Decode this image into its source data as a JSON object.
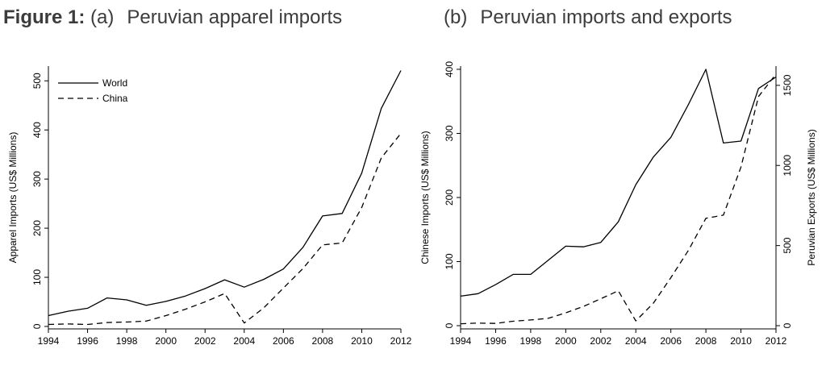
{
  "figure": {
    "label": "Figure 1:",
    "panel_a_tag": "(a)",
    "panel_a_title": "Peruvian apparel imports",
    "panel_b_tag": "(b)",
    "panel_b_title": "Peruvian imports and exports"
  },
  "chart_data": [
    {
      "type": "line",
      "title": "Peruvian apparel imports",
      "xlabel": "",
      "ylabel": "Apparel Imports (US$ Millions)",
      "x": [
        1994,
        1995,
        1996,
        1997,
        1998,
        1999,
        2000,
        2001,
        2002,
        2003,
        2004,
        2005,
        2006,
        2007,
        2008,
        2009,
        2010,
        2011,
        2012
      ],
      "xlim": [
        1994,
        2012
      ],
      "ylim": [
        -5,
        530
      ],
      "xticks": [
        "1994",
        "1996",
        "1998",
        "2000",
        "2002",
        "2004",
        "2006",
        "2008",
        "2010",
        "2012"
      ],
      "yticks": [
        "0",
        "100",
        "200",
        "300",
        "400",
        "500"
      ],
      "legend": "top-left",
      "series": [
        {
          "name": "World",
          "style": "solid",
          "values": [
            22,
            31,
            37,
            58,
            54,
            43,
            51,
            62,
            77,
            95,
            80,
            96,
            117,
            161,
            225,
            230,
            312,
            444,
            521
          ]
        },
        {
          "name": "China",
          "style": "dashed",
          "values": [
            4,
            5,
            4,
            8,
            9,
            11,
            22,
            35,
            50,
            67,
            7,
            38,
            78,
            118,
            166,
            170,
            242,
            343,
            393
          ]
        }
      ]
    },
    {
      "type": "line",
      "title": "Peruvian imports and exports",
      "xlabel": "",
      "ylabel": "Chinese Imports (US$ Millions)",
      "ylabel_right": "Peruvian Exports (US$ Millions)",
      "x": [
        1994,
        1995,
        1996,
        1997,
        1998,
        1999,
        2000,
        2001,
        2002,
        2003,
        2004,
        2005,
        2006,
        2007,
        2008,
        2009,
        2010,
        2011,
        2012
      ],
      "xlim": [
        1994,
        2012
      ],
      "ylim": [
        -5,
        405
      ],
      "ylim_right": [
        -20,
        1620
      ],
      "xticks": [
        "1994",
        "1996",
        "1998",
        "2000",
        "2002",
        "2004",
        "2006",
        "2008",
        "2010",
        "2012"
      ],
      "yticks": [
        "0",
        "100",
        "200",
        "300",
        "400"
      ],
      "yticks_right": [
        "0",
        "500",
        "1000",
        "1500"
      ],
      "series": [
        {
          "name": "Chinese Imports",
          "style": "solid",
          "axis": "left",
          "values": [
            46,
            50,
            64,
            80,
            80,
            102,
            124,
            123,
            130,
            162,
            220,
            263,
            294,
            345,
            400,
            285,
            288,
            370,
            388
          ]
        },
        {
          "name": "Peruvian Exports",
          "style": "dashed",
          "axis": "right",
          "values": [
            12,
            16,
            14,
            28,
            36,
            46,
            80,
            120,
            168,
            218,
            30,
            140,
            300,
            470,
            670,
            690,
            990,
            1430,
            1570
          ]
        }
      ]
    }
  ]
}
